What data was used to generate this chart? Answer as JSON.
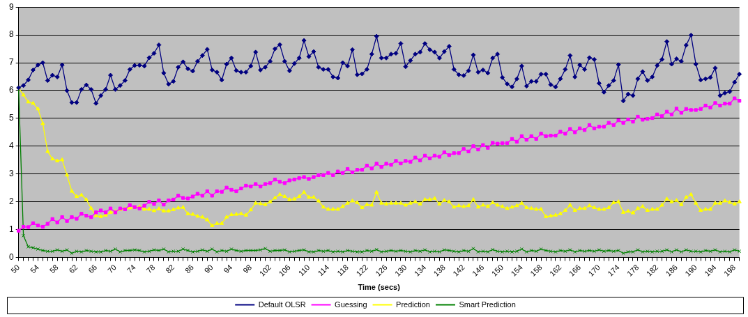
{
  "chart_data": {
    "type": "line",
    "xlabel": "Time (secs)",
    "categories": [
      "50",
      null,
      null,
      null,
      "54",
      null,
      null,
      null,
      "58",
      null,
      null,
      null,
      "62",
      null,
      null,
      null,
      "66",
      null,
      null,
      null,
      "70",
      null,
      null,
      null,
      "74",
      null,
      null,
      null,
      "78",
      null,
      null,
      null,
      "82",
      null,
      null,
      null,
      "86",
      null,
      null,
      null,
      "90",
      null,
      null,
      null,
      "94",
      null,
      null,
      null,
      "98",
      null,
      null,
      null,
      "102",
      null,
      null,
      null,
      "106",
      null,
      null,
      null,
      "110",
      null,
      null,
      null,
      "114",
      null,
      null,
      null,
      "118",
      null,
      null,
      null,
      "122",
      null,
      null,
      null,
      "126",
      null,
      null,
      null,
      "130",
      null,
      null,
      null,
      "134",
      null,
      null,
      null,
      "138",
      null,
      null,
      null,
      "142",
      null,
      null,
      null,
      "146",
      null,
      null,
      null,
      "150",
      null,
      null,
      null,
      "154",
      null,
      null,
      null,
      "158",
      null,
      null,
      null,
      "162",
      null,
      null,
      null,
      "166",
      null,
      null,
      null,
      "170",
      null,
      null,
      null,
      "174",
      null,
      null,
      null,
      "178",
      null,
      null,
      null,
      "182",
      null,
      null,
      null,
      "186",
      null,
      null,
      null,
      "190",
      null,
      null,
      null,
      "194",
      null,
      null,
      null,
      "198",
      null
    ],
    "series": [
      {
        "name": "Default OLSR",
        "color": "#000080",
        "marker": "diamond",
        "values": [
          6.1,
          6.18,
          6.38,
          6.74,
          6.92,
          7.0,
          6.36,
          6.55,
          6.49,
          6.92,
          6.0,
          5.57,
          5.57,
          6.04,
          6.2,
          6.04,
          5.54,
          5.82,
          6.04,
          6.55,
          6.04,
          6.18,
          6.36,
          6.76,
          6.9,
          6.91,
          6.88,
          7.18,
          7.34,
          7.64,
          6.63,
          6.23,
          6.33,
          6.84,
          7.03,
          6.78,
          6.7,
          7.05,
          7.26,
          7.48,
          6.74,
          6.66,
          6.38,
          6.95,
          7.17,
          6.72,
          6.66,
          6.66,
          6.88,
          7.38,
          6.74,
          6.84,
          7.05,
          7.5,
          7.65,
          7.05,
          6.71,
          6.97,
          7.17,
          7.8,
          7.22,
          7.4,
          6.84,
          6.76,
          6.76,
          6.49,
          6.45,
          7.0,
          6.88,
          7.47,
          6.57,
          6.6,
          6.76,
          7.31,
          7.95,
          7.17,
          7.17,
          7.31,
          7.34,
          7.69,
          6.86,
          7.08,
          7.31,
          7.38,
          7.69,
          7.47,
          7.38,
          7.17,
          7.4,
          7.59,
          6.76,
          6.57,
          6.54,
          6.71,
          7.28,
          6.66,
          6.74,
          6.63,
          7.17,
          7.31,
          6.47,
          6.24,
          6.13,
          6.42,
          6.88,
          6.16,
          6.33,
          6.33,
          6.59,
          6.59,
          6.21,
          6.13,
          6.42,
          6.76,
          7.26,
          6.49,
          6.92,
          6.76,
          7.18,
          7.12,
          6.26,
          5.94,
          6.18,
          6.36,
          6.93,
          5.63,
          5.87,
          5.82,
          6.42,
          6.68,
          6.36,
          6.49,
          6.9,
          7.12,
          7.76,
          6.95,
          7.14,
          7.05,
          7.63,
          7.99,
          6.95,
          6.38,
          6.42,
          6.47,
          6.81,
          5.82,
          5.91,
          5.96,
          6.3,
          6.59
        ]
      },
      {
        "name": "Guessing",
        "color": "#ff00ff",
        "marker": "square",
        "values": [
          0.96,
          1.1,
          1.09,
          1.23,
          1.15,
          1.1,
          1.21,
          1.38,
          1.26,
          1.45,
          1.31,
          1.45,
          1.39,
          1.57,
          1.5,
          1.45,
          1.62,
          1.69,
          1.62,
          1.76,
          1.62,
          1.76,
          1.73,
          1.88,
          1.81,
          1.76,
          1.86,
          2.0,
          1.92,
          2.05,
          1.9,
          2.05,
          2.08,
          2.22,
          2.14,
          2.12,
          2.19,
          2.29,
          2.22,
          2.38,
          2.22,
          2.38,
          2.36,
          2.51,
          2.43,
          2.38,
          2.48,
          2.58,
          2.55,
          2.64,
          2.55,
          2.64,
          2.67,
          2.8,
          2.72,
          2.67,
          2.77,
          2.8,
          2.85,
          2.89,
          2.82,
          2.89,
          2.96,
          2.96,
          3.04,
          2.96,
          3.09,
          3.04,
          3.18,
          3.06,
          3.15,
          3.15,
          3.3,
          3.2,
          3.37,
          3.25,
          3.37,
          3.33,
          3.47,
          3.38,
          3.47,
          3.44,
          3.59,
          3.49,
          3.66,
          3.56,
          3.66,
          3.62,
          3.78,
          3.68,
          3.75,
          3.75,
          3.9,
          3.81,
          4.0,
          3.88,
          4.04,
          3.94,
          4.12,
          4.09,
          4.11,
          4.11,
          4.26,
          4.16,
          4.36,
          4.23,
          4.36,
          4.26,
          4.45,
          4.36,
          4.38,
          4.38,
          4.52,
          4.45,
          4.62,
          4.5,
          4.64,
          4.58,
          4.76,
          4.64,
          4.7,
          4.7,
          4.84,
          4.76,
          4.93,
          4.84,
          4.96,
          4.88,
          5.06,
          4.95,
          4.98,
          5.01,
          5.14,
          5.08,
          5.24,
          5.14,
          5.35,
          5.2,
          5.34,
          5.3,
          5.3,
          5.34,
          5.46,
          5.39,
          5.55,
          5.46,
          5.53,
          5.53,
          5.72,
          5.63
        ]
      },
      {
        "name": "Prediction",
        "color": "#ffff00",
        "marker": "triangle",
        "values": [
          6.1,
          5.84,
          5.59,
          5.54,
          5.34,
          4.81,
          3.81,
          3.54,
          3.47,
          3.51,
          2.96,
          2.38,
          2.19,
          2.24,
          2.08,
          1.76,
          1.5,
          1.47,
          1.52,
          1.62,
          1.65,
          1.72,
          1.75,
          1.78,
          1.8,
          1.82,
          1.73,
          1.73,
          1.68,
          1.75,
          1.67,
          1.67,
          1.72,
          1.78,
          1.8,
          1.57,
          1.55,
          1.48,
          1.45,
          1.35,
          1.14,
          1.22,
          1.22,
          1.45,
          1.54,
          1.55,
          1.57,
          1.52,
          1.71,
          1.95,
          1.93,
          1.9,
          2.0,
          2.14,
          2.26,
          2.19,
          2.08,
          2.1,
          2.19,
          2.34,
          2.16,
          2.16,
          2.03,
          1.81,
          1.73,
          1.73,
          1.73,
          1.83,
          1.95,
          2.03,
          1.97,
          1.79,
          1.9,
          1.88,
          2.34,
          1.95,
          1.92,
          1.95,
          1.95,
          1.95,
          1.88,
          1.95,
          2.0,
          1.92,
          2.08,
          2.08,
          2.12,
          1.92,
          2.05,
          2.0,
          1.81,
          1.86,
          1.83,
          1.86,
          2.08,
          1.81,
          1.88,
          1.83,
          1.97,
          1.88,
          1.83,
          1.76,
          1.81,
          1.86,
          1.95,
          1.79,
          1.76,
          1.73,
          1.73,
          1.47,
          1.49,
          1.52,
          1.57,
          1.69,
          1.88,
          1.69,
          1.76,
          1.76,
          1.86,
          1.79,
          1.73,
          1.73,
          1.79,
          1.97,
          2.0,
          1.62,
          1.66,
          1.6,
          1.76,
          1.83,
          1.69,
          1.73,
          1.73,
          1.88,
          2.1,
          2.0,
          2.05,
          1.9,
          2.16,
          2.26,
          1.95,
          1.69,
          1.73,
          1.73,
          1.95,
          1.95,
          2.03,
          1.98,
          1.92,
          2.0
        ]
      },
      {
        "name": "Smart Prediction",
        "color": "#008000",
        "marker": "cross",
        "values": [
          6.1,
          0.78,
          0.38,
          0.35,
          0.3,
          0.25,
          0.22,
          0.22,
          0.27,
          0.22,
          0.27,
          0.15,
          0.22,
          0.2,
          0.25,
          0.22,
          0.2,
          0.2,
          0.25,
          0.22,
          0.3,
          0.2,
          0.25,
          0.25,
          0.27,
          0.25,
          0.2,
          0.22,
          0.27,
          0.25,
          0.3,
          0.2,
          0.22,
          0.22,
          0.3,
          0.25,
          0.2,
          0.22,
          0.27,
          0.22,
          0.3,
          0.2,
          0.25,
          0.22,
          0.3,
          0.25,
          0.22,
          0.25,
          0.25,
          0.25,
          0.27,
          0.32,
          0.22,
          0.25,
          0.25,
          0.27,
          0.2,
          0.22,
          0.25,
          0.27,
          0.2,
          0.2,
          0.25,
          0.22,
          0.25,
          0.2,
          0.22,
          0.2,
          0.25,
          0.22,
          0.2,
          0.2,
          0.25,
          0.22,
          0.28,
          0.2,
          0.22,
          0.25,
          0.22,
          0.25,
          0.22,
          0.2,
          0.25,
          0.22,
          0.27,
          0.2,
          0.22,
          0.2,
          0.27,
          0.25,
          0.22,
          0.2,
          0.25,
          0.22,
          0.32,
          0.2,
          0.22,
          0.2,
          0.28,
          0.22,
          0.2,
          0.22,
          0.2,
          0.22,
          0.3,
          0.2,
          0.25,
          0.22,
          0.3,
          0.25,
          0.22,
          0.2,
          0.25,
          0.22,
          0.27,
          0.2,
          0.25,
          0.22,
          0.25,
          0.22,
          0.27,
          0.22,
          0.25,
          0.22,
          0.25,
          0.15,
          0.2,
          0.2,
          0.27,
          0.2,
          0.22,
          0.2,
          0.22,
          0.22,
          0.27,
          0.2,
          0.27,
          0.2,
          0.27,
          0.22,
          0.22,
          0.2,
          0.25,
          0.22,
          0.27,
          0.2,
          0.22,
          0.2,
          0.27,
          0.22
        ]
      }
    ],
    "ylim": [
      0,
      9
    ],
    "yticks": [
      0,
      1,
      2,
      3,
      4,
      5,
      6,
      7,
      8,
      9
    ],
    "grid": "y",
    "legend": "bottom",
    "line_style": "solid"
  }
}
